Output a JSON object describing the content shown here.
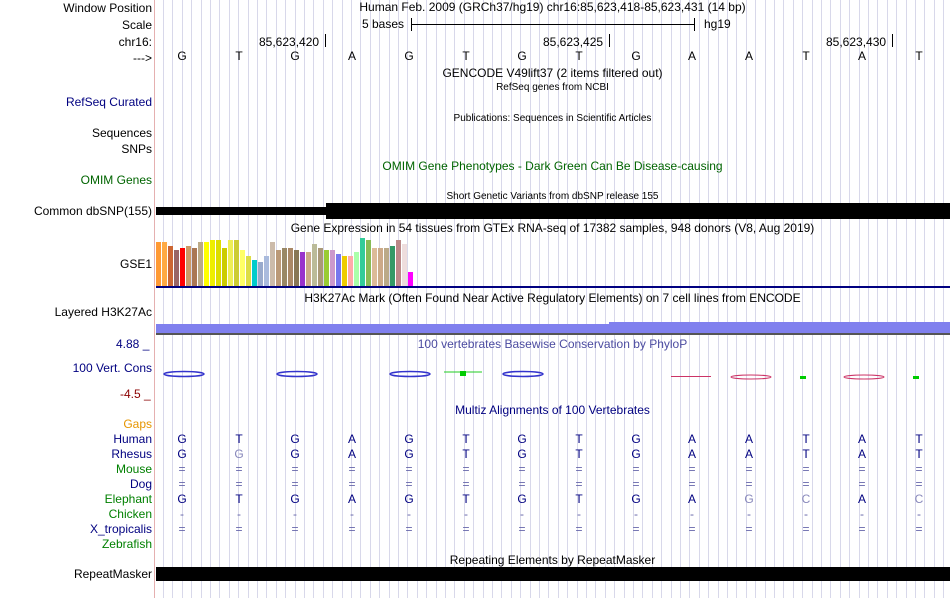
{
  "header": {
    "window_position_label": "Window Position",
    "window_position_text": "Human Feb. 2009 (GRCh37/hg19)   chr16:85,623,418-85,623,431 (14 bp)",
    "scale_label": "Scale",
    "scale_text": "5 bases",
    "scale_assembly": "hg19",
    "chrom_label": "chr16:",
    "strand_label": "--->",
    "coords": [
      "85,623,420",
      "85,623,425",
      "85,623,430"
    ]
  },
  "sequence": [
    "G",
    "T",
    "G",
    "A",
    "G",
    "T",
    "G",
    "T",
    "G",
    "A",
    "A",
    "T",
    "A",
    "T"
  ],
  "tracks": {
    "gencode_title": "GENCODE V49lift37 (2 items filtered out)",
    "refseq_sub": "RefSeq genes from NCBI",
    "refseq_label": "RefSeq Curated",
    "publications_sub": "Publications: Sequences in Scientific Articles",
    "sequences_label": "Sequences",
    "snps_label": "SNPs",
    "omim_title": "OMIM Gene Phenotypes - Dark Green Can Be Disease-causing",
    "omim_label": "OMIM Genes",
    "dbsnp_sub": "Short Genetic Variants from dbSNP release 155",
    "dbsnp_label": "Common dbSNP(155)",
    "gtex_title": "Gene Expression in 54 tissues from GTEx RNA-seq of 17382 samples, 948 donors (V8, Aug 2019)",
    "gse1_label": "GSE1",
    "h3k27_title": "H3K27Ac Mark (Often Found Near Active Regulatory Elements) on 7 cell lines from ENCODE",
    "h3k27_label": "Layered H3K27Ac",
    "cons_max": "4.88 _",
    "cons_min": "-4.5 _",
    "cons_title": "100 vertebrates Basewise Conservation by PhyloP",
    "cons_label": "100 Vert. Cons",
    "multiz_title": "Multiz Alignments of 100 Vertebrates",
    "gaps_label": "Gaps",
    "repeat_title": "Repeating Elements by RepeatMasker",
    "repeat_label": "RepeatMasker"
  },
  "species": [
    {
      "name": "Human",
      "color": "#000080",
      "bases": [
        "G",
        "T",
        "G",
        "A",
        "G",
        "T",
        "G",
        "T",
        "G",
        "A",
        "A",
        "T",
        "A",
        "T"
      ]
    },
    {
      "name": "Rhesus",
      "color": "#000080",
      "bases": [
        "G",
        "G",
        "G",
        "A",
        "G",
        "T",
        "G",
        "T",
        "G",
        "A",
        "A",
        "T",
        "A",
        "T"
      ]
    },
    {
      "name": "Mouse",
      "color": "#008000",
      "bases": [
        "=",
        "=",
        "=",
        "=",
        "=",
        "=",
        "=",
        "=",
        "=",
        "=",
        "=",
        "=",
        "=",
        "="
      ]
    },
    {
      "name": "Dog",
      "color": "#000080",
      "bases": [
        "=",
        "=",
        "=",
        "=",
        "=",
        "=",
        "=",
        "=",
        "=",
        "=",
        "=",
        "=",
        "=",
        "="
      ]
    },
    {
      "name": "Elephant",
      "color": "#008000",
      "bases": [
        "G",
        "T",
        "G",
        "A",
        "G",
        "T",
        "G",
        "T",
        "G",
        "A",
        "G",
        "C",
        "A",
        "C"
      ]
    },
    {
      "name": "Chicken",
      "color": "#008000",
      "bases": [
        "-",
        "-",
        "-",
        "-",
        "-",
        "-",
        "-",
        "-",
        "-",
        "-",
        "-",
        "-",
        "-",
        "-"
      ]
    },
    {
      "name": "X_tropicalis",
      "color": "#000080",
      "bases": [
        "=",
        "=",
        "=",
        "=",
        "=",
        "=",
        "=",
        "=",
        "=",
        "=",
        "=",
        "=",
        "=",
        "="
      ]
    },
    {
      "name": "Zebrafish",
      "color": "#008000",
      "bases": [
        "",
        "",
        "",
        "",
        "",
        "",
        "",
        "",
        "",
        "",
        "",
        "",
        "",
        ""
      ]
    }
  ],
  "gtex_colors": [
    "#ff9933",
    "#ffaa44",
    "#cc6633",
    "#996666",
    "#ff0000",
    "#cc9966",
    "#aa7755",
    "#bbaa88",
    "#ffff00",
    "#eeee00",
    "#dddd00",
    "#cccc00",
    "#eeee55",
    "#cccc33",
    "#ffff66",
    "#dddd44",
    "#00cccc",
    "#99aacc",
    "#aabbdd",
    "#ccbbaa",
    "#bb9977",
    "#998866",
    "#aa8866",
    "#887755",
    "#9933cc",
    "#ccaa88",
    "#bbbb99",
    "#aa9977",
    "#99cc33",
    "#cc99cc",
    "#7777ee",
    "#eecc00",
    "#ffaaaa",
    "#aaffaa",
    "#33cc99",
    "#88bb55",
    "#ddbb99",
    "#ccaa88",
    "#bbaa88",
    "#339966",
    "#bb8888",
    "#eedddd",
    "#ff00ff"
  ],
  "gtex_values": [
    44,
    44,
    40,
    36,
    38,
    40,
    38,
    44,
    44,
    46,
    46,
    38,
    46,
    46,
    36,
    30,
    26,
    24,
    30,
    44,
    36,
    38,
    38,
    36,
    34,
    34,
    42,
    38,
    36,
    36,
    32,
    30,
    30,
    34,
    48,
    46,
    38,
    38,
    38,
    40,
    46,
    42,
    14
  ]
}
